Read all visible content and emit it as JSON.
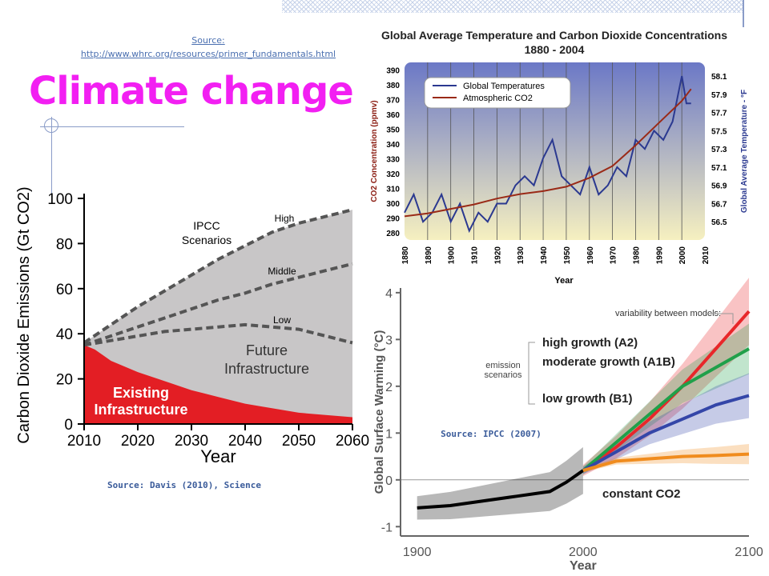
{
  "slide": {
    "title": "Climate change",
    "source_top_label": "Source:",
    "source_top_url": "http://www.whrc.org/resources/primer_fundamentals.html",
    "source_left": "Source: Davis (2010), Science",
    "source_right": "Source: IPCC (2007)"
  },
  "chart_data": [
    {
      "type": "area",
      "title": "",
      "ylabel": "Carbon Dioxide Emissions (Gt CO2)",
      "xlabel": "Year",
      "xlim": [
        2010,
        2060
      ],
      "ylim": [
        0,
        100
      ],
      "xticks": [
        2010,
        2020,
        2030,
        2040,
        2050,
        2060
      ],
      "yticks": [
        0,
        20,
        40,
        60,
        80,
        100
      ],
      "annotations": [
        "IPCC Scenarios",
        "Future Infrastructure",
        "Existing Infrastructure"
      ],
      "series": [
        {
          "name": "High",
          "style": "dashed",
          "x": [
            2010,
            2015,
            2020,
            2025,
            2030,
            2035,
            2040,
            2045,
            2050,
            2055,
            2060
          ],
          "values": [
            36,
            44,
            52,
            59,
            66,
            73,
            79,
            85,
            89,
            92,
            95
          ]
        },
        {
          "name": "Middle",
          "style": "dashed",
          "x": [
            2010,
            2015,
            2020,
            2025,
            2030,
            2035,
            2040,
            2045,
            2050,
            2055,
            2060
          ],
          "values": [
            35,
            39,
            43,
            47,
            51,
            55,
            58,
            62,
            65,
            68,
            71
          ]
        },
        {
          "name": "Low",
          "style": "dashed",
          "x": [
            2010,
            2015,
            2020,
            2025,
            2030,
            2035,
            2040,
            2045,
            2050,
            2055,
            2060
          ],
          "values": [
            35,
            37,
            39,
            41,
            42,
            43,
            44,
            43,
            42,
            39,
            36
          ]
        },
        {
          "name": "Existing Infrastructure",
          "style": "area",
          "color": "#e31e24",
          "x": [
            2010,
            2012,
            2015,
            2020,
            2025,
            2030,
            2035,
            2040,
            2045,
            2050,
            2055,
            2060
          ],
          "values": [
            35,
            33,
            28,
            23,
            19,
            15,
            12,
            9,
            7,
            5,
            4,
            3
          ]
        }
      ],
      "colors": {
        "future": "#c8c6c7",
        "existing": "#e31e24"
      }
    },
    {
      "type": "line",
      "title": "Global Average Temperature and Carbon Dioxide Concentrations, 1880 - 2004",
      "xlabel": "Year",
      "ylabel": "CO2 Concentration (ppmv)",
      "ylabel_right": "Global Average Temperature - °F",
      "xlim": [
        1880,
        2010
      ],
      "ylim": [
        275,
        395
      ],
      "ylim_right": [
        56.3,
        58.25
      ],
      "xticks": [
        1880,
        1890,
        1900,
        1910,
        1920,
        1930,
        1940,
        1950,
        1960,
        1970,
        1980,
        1990,
        2000,
        2010
      ],
      "yticks": [
        280,
        290,
        300,
        310,
        320,
        330,
        340,
        350,
        360,
        370,
        380,
        390
      ],
      "yticks_right": [
        56.5,
        56.7,
        56.9,
        57.1,
        57.3,
        57.5,
        57.7,
        57.9,
        58.1
      ],
      "legend": [
        "Global Temperatures",
        "Atmospheric CO2"
      ],
      "series": [
        {
          "name": "Global Temperatures",
          "axis": "right",
          "color": "#2b3990",
          "x": [
            1880,
            1884,
            1888,
            1892,
            1896,
            1900,
            1904,
            1908,
            1912,
            1916,
            1920,
            1924,
            1928,
            1932,
            1936,
            1940,
            1944,
            1948,
            1952,
            1956,
            1960,
            1964,
            1968,
            1972,
            1976,
            1980,
            1984,
            1988,
            1992,
            1996,
            2000,
            2002,
            2004
          ],
          "values": [
            56.6,
            56.8,
            56.5,
            56.6,
            56.8,
            56.5,
            56.7,
            56.4,
            56.6,
            56.5,
            56.7,
            56.7,
            56.9,
            57.0,
            56.9,
            57.2,
            57.4,
            57.0,
            56.9,
            56.8,
            57.1,
            56.8,
            56.9,
            57.1,
            57.0,
            57.4,
            57.3,
            57.5,
            57.4,
            57.6,
            58.1,
            57.8,
            57.8
          ]
        },
        {
          "name": "Atmospheric CO2",
          "axis": "left",
          "color": "#9a2a17",
          "x": [
            1880,
            1890,
            1900,
            1910,
            1920,
            1930,
            1940,
            1950,
            1960,
            1970,
            1980,
            1990,
            2000,
            2004
          ],
          "values": [
            291,
            293,
            296,
            299,
            303,
            306,
            308,
            311,
            317,
            325,
            339,
            354,
            369,
            377
          ]
        }
      ],
      "colors": {
        "bg_top": "#6b78c6",
        "bg_bottom": "#f6f0c0"
      }
    },
    {
      "type": "line",
      "title": "",
      "xlabel": "Year",
      "ylabel": "Global Surface Warming (°C)",
      "xlim": [
        1890,
        2100
      ],
      "ylim": [
        -1.2,
        4.1
      ],
      "xticks": [
        1900,
        2000,
        2100
      ],
      "yticks": [
        -1,
        0,
        1,
        2,
        3,
        4
      ],
      "annotations": [
        "variability between models",
        "emission scenarios"
      ],
      "series": [
        {
          "name": "historical",
          "color": "#000000",
          "x": [
            1900,
            1920,
            1940,
            1960,
            1980,
            1990,
            2000
          ],
          "values": [
            -0.6,
            -0.55,
            -0.45,
            -0.35,
            -0.25,
            -0.05,
            0.2
          ]
        },
        {
          "name": "high growth (A2)",
          "color": "#e8272a",
          "x": [
            2000,
            2020,
            2040,
            2060,
            2080,
            2100
          ],
          "values": [
            0.2,
            0.7,
            1.3,
            2.0,
            2.8,
            3.6
          ]
        },
        {
          "name": "moderate growth (A1B)",
          "color": "#20a04a",
          "x": [
            2000,
            2020,
            2040,
            2060,
            2080,
            2100
          ],
          "values": [
            0.2,
            0.8,
            1.4,
            2.0,
            2.4,
            2.8
          ]
        },
        {
          "name": "low growth (B1)",
          "color": "#3446a8",
          "x": [
            2000,
            2020,
            2040,
            2060,
            2080,
            2100
          ],
          "values": [
            0.2,
            0.6,
            1.0,
            1.3,
            1.6,
            1.8
          ]
        },
        {
          "name": "constant CO2",
          "color": "#f08c1e",
          "x": [
            2000,
            2020,
            2040,
            2060,
            2080,
            2100
          ],
          "values": [
            0.2,
            0.4,
            0.45,
            0.5,
            0.52,
            0.55
          ]
        }
      ]
    }
  ]
}
